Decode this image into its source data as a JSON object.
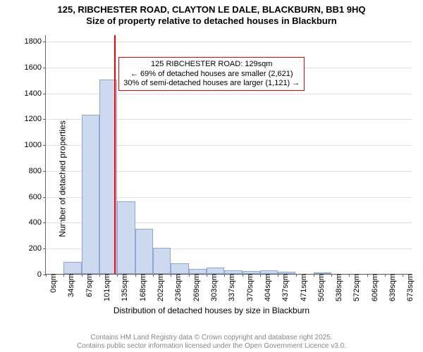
{
  "title": {
    "line1": "125, RIBCHESTER ROAD, CLAYTON LE DALE, BLACKBURN, BB1 9HQ",
    "line2": "Size of property relative to detached houses in Blackburn",
    "fontsize": 13,
    "color": "#000000"
  },
  "chart": {
    "type": "histogram",
    "background_color": "#ffffff",
    "grid_color": "#e0e0e0",
    "axis_color": "#666666",
    "bar_fill": "#cdd9ee",
    "bar_border": "#8aa9d6",
    "ylabel": "Number of detached properties",
    "xlabel": "Distribution of detached houses by size in Blackburn",
    "label_fontsize": 12,
    "tick_fontsize": 11,
    "ylim_max": 1850,
    "yticks": [
      0,
      200,
      400,
      600,
      800,
      1000,
      1200,
      1400,
      1600,
      1800
    ],
    "x_tick_step": 33.6,
    "x_tick_labels": [
      "0sqm",
      "34sqm",
      "67sqm",
      "101sqm",
      "135sqm",
      "168sqm",
      "202sqm",
      "236sqm",
      "269sqm",
      "303sqm",
      "337sqm",
      "370sqm",
      "404sqm",
      "437sqm",
      "471sqm",
      "505sqm",
      "538sqm",
      "572sqm",
      "606sqm",
      "639sqm",
      "673sqm"
    ],
    "x_max": 690,
    "bin_width": 33.6,
    "values": [
      0,
      90,
      1230,
      1500,
      560,
      350,
      200,
      80,
      40,
      50,
      30,
      20,
      30,
      15,
      0,
      8,
      0,
      0,
      0,
      0
    ],
    "marker": {
      "x": 129,
      "color": "#ff0000",
      "width": 2
    },
    "annotation": {
      "lines": [
        "125 RIBCHESTER ROAD: 129sqm",
        "← 69% of detached houses are smaller (2,621)",
        "30% of semi-detached houses are larger (1,121) →"
      ],
      "border_color": "#ff0000",
      "text_color": "#000000",
      "fontsize": 11
    }
  },
  "footer": {
    "line1": "Contains HM Land Registry data © Crown copyright and database right 2025.",
    "line2": "Contains public sector information licensed under the Open Government Licence v3.0.",
    "color": "#888888",
    "fontsize": 10
  }
}
